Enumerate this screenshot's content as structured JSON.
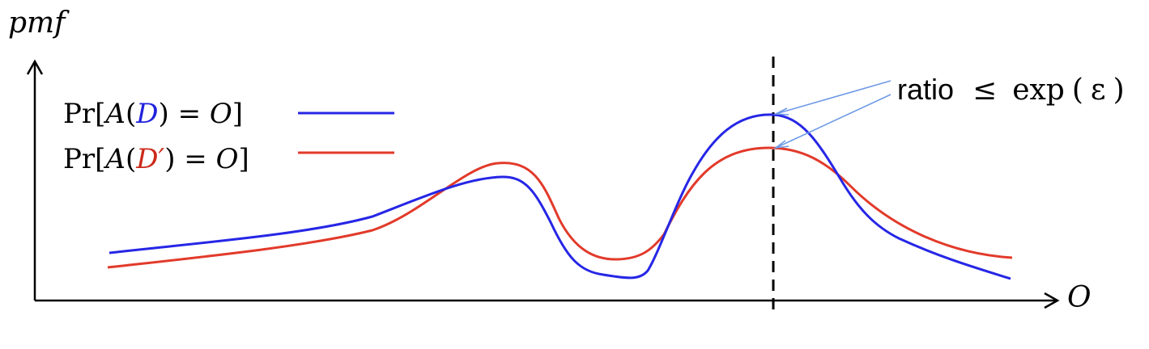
{
  "figure": {
    "y_axis_label": "pmf",
    "x_axis_label": "O",
    "annotation": {
      "word": "ratio",
      "relation": "≤",
      "func": "exp",
      "arg": "ε"
    },
    "legend": [
      {
        "id": "blue",
        "prefix": "Pr[",
        "func": "A",
        "db": "D",
        "suffix": ") = ",
        "out": "O",
        "close": "]",
        "color": "#2222dd"
      },
      {
        "id": "red",
        "prefix": "Pr[",
        "func": "A",
        "db": "D′",
        "suffix": ") = ",
        "out": "O",
        "close": "]",
        "color": "#cc2a1a"
      }
    ],
    "colors": {
      "axis": "#000000",
      "arrow": "#6f9ae6",
      "blue_curve": "#2626e6",
      "red_curve": "#e23a2a"
    }
  }
}
